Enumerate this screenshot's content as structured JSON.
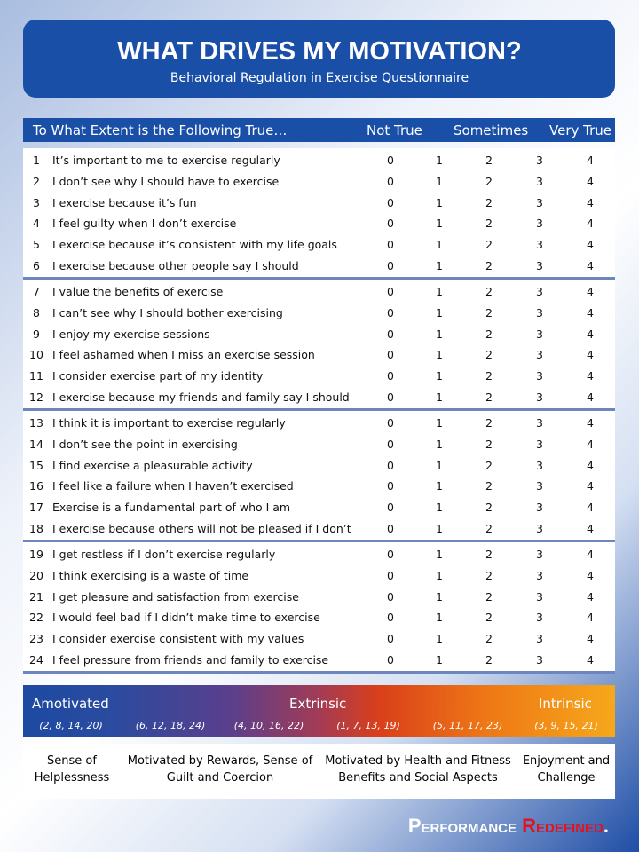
{
  "header": {
    "title": "WHAT DRIVES MY MOTIVATION?",
    "subtitle": "Behavioral Regulation in Exercise Questionnaire"
  },
  "table": {
    "columns": [
      "To What Extent is the Following True…",
      "Not True",
      "Sometimes",
      "Very True"
    ],
    "scale": [
      0,
      1,
      2,
      3,
      4
    ],
    "groups": [
      [
        {
          "number": 1,
          "text": "It’s important to me to exercise regularly"
        },
        {
          "number": 2,
          "text": "I don’t see why I should have to exercise"
        },
        {
          "number": 3,
          "text": "I exercise because it’s fun"
        },
        {
          "number": 4,
          "text": "I feel guilty when I don’t exercise"
        },
        {
          "number": 5,
          "text": "I exercise because it’s consistent with my life goals"
        },
        {
          "number": 6,
          "text": "I exercise because other people say I should"
        }
      ],
      [
        {
          "number": 7,
          "text": "I value the benefits of exercise"
        },
        {
          "number": 8,
          "text": "I can’t see why I should bother exercising"
        },
        {
          "number": 9,
          "text": "I enjoy my exercise sessions"
        },
        {
          "number": 10,
          "text": "I feel ashamed when I miss an exercise session"
        },
        {
          "number": 11,
          "text": "I consider exercise part of my identity"
        },
        {
          "number": 12,
          "text": "I exercise because my friends and family say I should"
        }
      ],
      [
        {
          "number": 13,
          "text": "I think it is important to exercise regularly"
        },
        {
          "number": 14,
          "text": "I don’t see the point in exercising"
        },
        {
          "number": 15,
          "text": "I find exercise a pleasurable activity"
        },
        {
          "number": 16,
          "text": "I feel like a failure when I haven’t exercised"
        },
        {
          "number": 17,
          "text": "Exercise is a fundamental part of who I am"
        },
        {
          "number": 18,
          "text": "I exercise because others will not be pleased if I don’t"
        }
      ],
      [
        {
          "number": 19,
          "text": "I get restless if I don’t exercise regularly"
        },
        {
          "number": 20,
          "text": "I think exercising is a waste of time"
        },
        {
          "number": 21,
          "text": "I get pleasure and satisfaction from exercise"
        },
        {
          "number": 22,
          "text": "I would feel bad if I didn’t make time to exercise"
        },
        {
          "number": 23,
          "text": "I consider exercise consistent with my values"
        },
        {
          "number": 24,
          "text": "I feel pressure from friends and family to exercise"
        }
      ]
    ]
  },
  "legend": {
    "labels": [
      "Amotivated",
      "Extrinsic",
      "Intrinsic"
    ],
    "sets": [
      "(2, 8, 14, 20)",
      "(6, 12, 18, 24)",
      "(4, 10, 16, 22)",
      "(1, 7, 13, 19)",
      "(5, 11, 17, 23)",
      "(3, 9, 15, 21)"
    ],
    "descriptions": [
      "Sense of Helplessness",
      "Motivated by Rewards, Sense of Guilt and Coercion",
      "Motivated by Health and Fitness Benefits and Social Aspects",
      "Enjoyment and Challenge"
    ]
  },
  "footer": {
    "brand": "Performance",
    "accent": "Redefined",
    "dot": "."
  }
}
